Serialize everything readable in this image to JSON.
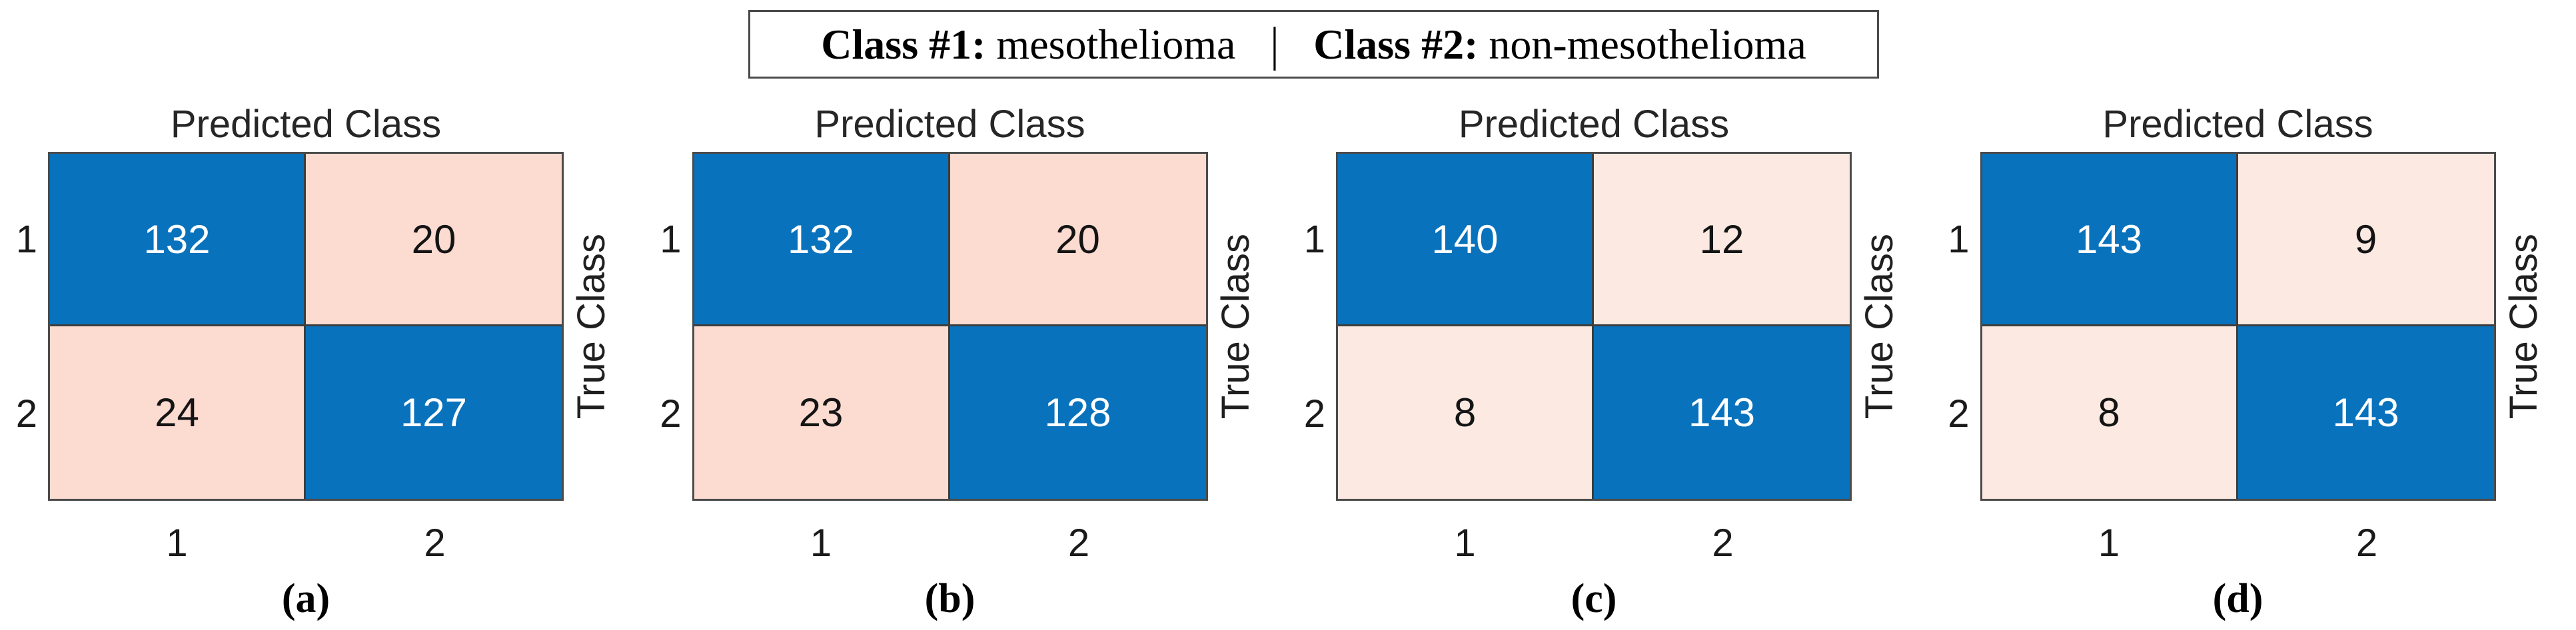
{
  "figure": {
    "legend": {
      "class1_label": "Class #1:",
      "class1_value": "mesothelioma",
      "separator": "|",
      "class2_label": "Class #2:",
      "class2_value": "non-mesothelioma"
    }
  },
  "colors": {
    "diagonal_blue": "#0872bc",
    "off_diagonal_pink_ab": "#fcdbd1",
    "off_diagonal_pink_cd": "#fce9e1",
    "grid_line": "#3d3d3d",
    "outer_border": "#4b4b4b",
    "text_on_blue": "#ffffff",
    "text_on_pink": "#141414",
    "axis_text": "#1a1a1a"
  },
  "panels": [
    {
      "caption": "(a)",
      "title": "Predicted Class",
      "y_axis_label": "True Class",
      "row_labels": [
        "1",
        "2"
      ],
      "col_labels": [
        "1",
        "2"
      ],
      "cells": [
        [
          {
            "value": "132",
            "bg": "#0872bc",
            "fg": "#ffffff"
          },
          {
            "value": "20",
            "bg": "#fcdbd1",
            "fg": "#141414"
          }
        ],
        [
          {
            "value": "24",
            "bg": "#fcdbd1",
            "fg": "#141414"
          },
          {
            "value": "127",
            "bg": "#0872bc",
            "fg": "#ffffff"
          }
        ]
      ]
    },
    {
      "caption": "(b)",
      "title": "Predicted Class",
      "y_axis_label": "True Class",
      "row_labels": [
        "1",
        "2"
      ],
      "col_labels": [
        "1",
        "2"
      ],
      "cells": [
        [
          {
            "value": "132",
            "bg": "#0872bc",
            "fg": "#ffffff"
          },
          {
            "value": "20",
            "bg": "#fcdbd1",
            "fg": "#141414"
          }
        ],
        [
          {
            "value": "23",
            "bg": "#fcdbd1",
            "fg": "#141414"
          },
          {
            "value": "128",
            "bg": "#0872bc",
            "fg": "#ffffff"
          }
        ]
      ]
    },
    {
      "caption": "(c)",
      "title": "Predicted Class",
      "y_axis_label": "True Class",
      "row_labels": [
        "1",
        "2"
      ],
      "col_labels": [
        "1",
        "2"
      ],
      "cells": [
        [
          {
            "value": "140",
            "bg": "#0872bc",
            "fg": "#ffffff"
          },
          {
            "value": "12",
            "bg": "#fce9e1",
            "fg": "#141414"
          }
        ],
        [
          {
            "value": "8",
            "bg": "#fce9e1",
            "fg": "#141414"
          },
          {
            "value": "143",
            "bg": "#0872bc",
            "fg": "#ffffff"
          }
        ]
      ]
    },
    {
      "caption": "(d)",
      "title": "Predicted Class",
      "y_axis_label": "True Class",
      "row_labels": [
        "1",
        "2"
      ],
      "col_labels": [
        "1",
        "2"
      ],
      "cells": [
        [
          {
            "value": "143",
            "bg": "#0872bc",
            "fg": "#ffffff"
          },
          {
            "value": "9",
            "bg": "#fce9e1",
            "fg": "#141414"
          }
        ],
        [
          {
            "value": "8",
            "bg": "#fce9e1",
            "fg": "#141414"
          },
          {
            "value": "143",
            "bg": "#0872bc",
            "fg": "#ffffff"
          }
        ]
      ]
    }
  ],
  "chart_data": [
    {
      "type": "heatmap",
      "subtype": "confusion-matrix",
      "caption": "(a)",
      "title": "Predicted Class",
      "xlabel": "Predicted Class",
      "ylabel": "True Class",
      "x_tick_labels": [
        "1",
        "2"
      ],
      "y_tick_labels": [
        "1",
        "2"
      ],
      "matrix": [
        [
          132,
          20
        ],
        [
          24,
          127
        ]
      ],
      "diagonal_color": "#0872bc",
      "off_diagonal_color": "#fcdbd1",
      "legend": "Class #1: mesothelioma | Class #2: non-mesothelioma"
    },
    {
      "type": "heatmap",
      "subtype": "confusion-matrix",
      "caption": "(b)",
      "title": "Predicted Class",
      "xlabel": "Predicted Class",
      "ylabel": "True Class",
      "x_tick_labels": [
        "1",
        "2"
      ],
      "y_tick_labels": [
        "1",
        "2"
      ],
      "matrix": [
        [
          132,
          20
        ],
        [
          23,
          128
        ]
      ],
      "diagonal_color": "#0872bc",
      "off_diagonal_color": "#fcdbd1",
      "legend": "Class #1: mesothelioma | Class #2: non-mesothelioma"
    },
    {
      "type": "heatmap",
      "subtype": "confusion-matrix",
      "caption": "(c)",
      "title": "Predicted Class",
      "xlabel": "Predicted Class",
      "ylabel": "True Class",
      "x_tick_labels": [
        "1",
        "2"
      ],
      "y_tick_labels": [
        "1",
        "2"
      ],
      "matrix": [
        [
          140,
          12
        ],
        [
          8,
          143
        ]
      ],
      "diagonal_color": "#0872bc",
      "off_diagonal_color": "#fce9e1",
      "legend": "Class #1: mesothelioma | Class #2: non-mesothelioma"
    },
    {
      "type": "heatmap",
      "subtype": "confusion-matrix",
      "caption": "(d)",
      "title": "Predicted Class",
      "xlabel": "Predicted Class",
      "ylabel": "True Class",
      "x_tick_labels": [
        "1",
        "2"
      ],
      "y_tick_labels": [
        "1",
        "2"
      ],
      "matrix": [
        [
          143,
          9
        ],
        [
          8,
          143
        ]
      ],
      "diagonal_color": "#0872bc",
      "off_diagonal_color": "#fce9e1",
      "legend": "Class #1: mesothelioma | Class #2: non-mesothelioma"
    }
  ]
}
